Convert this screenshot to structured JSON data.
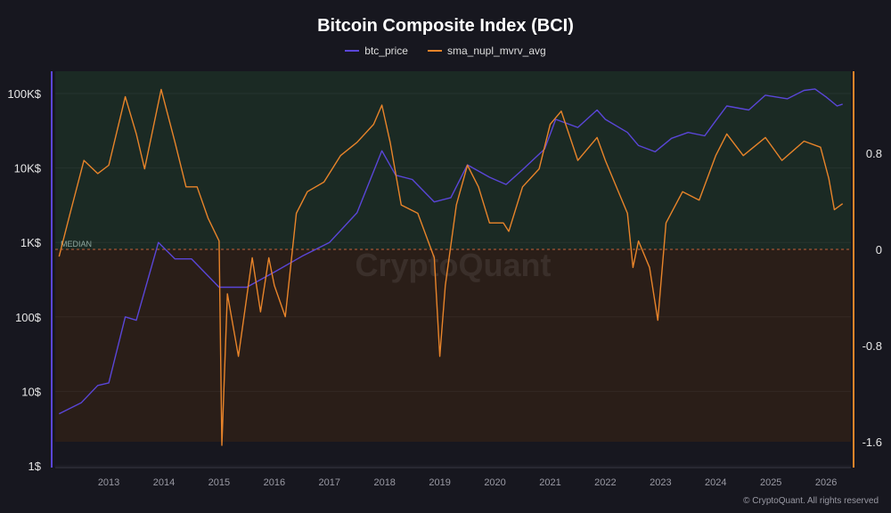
{
  "chart_data": {
    "type": "line",
    "title": "Bitcoin Composite Index (BCI)",
    "watermark": "CryptoQuant",
    "credit": "© CryptoQuant. All rights reserved",
    "median_label": "MEDIAN",
    "x_ticks": [
      2013,
      2014,
      2015,
      2016,
      2017,
      2018,
      2019,
      2020,
      2021,
      2022,
      2023,
      2024,
      2025,
      2026
    ],
    "xlim": [
      2012.03,
      2026.45
    ],
    "y_left": {
      "scale": "log",
      "lim": [
        1,
        150000
      ],
      "ticks": [
        1,
        10,
        100,
        1000,
        10000,
        100000
      ],
      "tick_labels": [
        "1$",
        "10$",
        "100$",
        "1K$",
        "10K$",
        "100K$"
      ]
    },
    "y_right": {
      "lim": [
        -1.6,
        1.5
      ],
      "ticks": [
        -1.6,
        -0.8,
        0,
        0.8
      ],
      "tick_labels": [
        "-1.6",
        "-0.8",
        "0",
        "0.8"
      ]
    },
    "legend_position": "top-center",
    "colors": {
      "btc": "#5a46d8",
      "sma": "#e8842a",
      "above": "#1b2a24",
      "below": "#2a1e18",
      "bg": "#17171f"
    },
    "series": [
      {
        "name": "btc_price",
        "axis": "left",
        "color": "#5a46d8",
        "x": [
          2012.1,
          2012.5,
          2012.8,
          2013.0,
          2013.3,
          2013.5,
          2013.9,
          2014.2,
          2014.5,
          2015.0,
          2015.5,
          2016.0,
          2016.5,
          2017.0,
          2017.5,
          2017.95,
          2018.2,
          2018.5,
          2018.9,
          2019.2,
          2019.5,
          2019.9,
          2020.2,
          2020.5,
          2020.9,
          2021.1,
          2021.5,
          2021.85,
          2022.0,
          2022.4,
          2022.6,
          2022.9,
          2023.2,
          2023.5,
          2023.8,
          2024.0,
          2024.2,
          2024.6,
          2024.9,
          2025.3,
          2025.6,
          2025.8,
          2026.0,
          2026.2,
          2026.3
        ],
        "y": [
          5,
          7,
          12,
          13,
          100,
          90,
          1000,
          600,
          600,
          250,
          250,
          400,
          650,
          1000,
          2500,
          17000,
          8000,
          7000,
          3500,
          4000,
          11000,
          7500,
          6000,
          9500,
          18000,
          45000,
          35000,
          60000,
          45000,
          30000,
          20000,
          16500,
          25000,
          30000,
          27000,
          43000,
          68000,
          60000,
          95000,
          85000,
          110000,
          115000,
          90000,
          68000,
          72000
        ]
      },
      {
        "name": "sma_nupl_mvrv_avg",
        "axis": "right",
        "color": "#e8842a",
        "x": [
          2012.1,
          2012.3,
          2012.55,
          2012.8,
          2013.0,
          2013.3,
          2013.5,
          2013.65,
          2013.95,
          2014.2,
          2014.4,
          2014.6,
          2014.8,
          2015.0,
          2015.05,
          2015.15,
          2015.35,
          2015.6,
          2015.75,
          2015.9,
          2016.0,
          2016.2,
          2016.4,
          2016.6,
          2016.9,
          2017.2,
          2017.5,
          2017.8,
          2017.95,
          2018.1,
          2018.3,
          2018.6,
          2018.9,
          2019.0,
          2019.1,
          2019.3,
          2019.5,
          2019.7,
          2019.9,
          2020.15,
          2020.25,
          2020.5,
          2020.8,
          2021.0,
          2021.2,
          2021.5,
          2021.85,
          2022.0,
          2022.4,
          2022.5,
          2022.6,
          2022.8,
          2022.95,
          2023.1,
          2023.4,
          2023.7,
          2024.0,
          2024.2,
          2024.5,
          2024.9,
          2025.2,
          2025.6,
          2025.9,
          2026.05,
          2026.15,
          2026.3
        ],
        "y": [
          -0.06,
          0.3,
          0.74,
          0.63,
          0.7,
          1.27,
          0.96,
          0.67,
          1.33,
          0.89,
          0.52,
          0.52,
          0.26,
          0.07,
          -1.63,
          -0.37,
          -0.89,
          -0.07,
          -0.52,
          -0.07,
          -0.3,
          -0.56,
          0.3,
          0.48,
          0.56,
          0.78,
          0.89,
          1.04,
          1.2,
          0.89,
          0.37,
          0.3,
          -0.07,
          -0.89,
          -0.3,
          0.37,
          0.7,
          0.52,
          0.22,
          0.22,
          0.15,
          0.52,
          0.67,
          1.04,
          1.15,
          0.74,
          0.93,
          0.74,
          0.3,
          -0.15,
          0.07,
          -0.15,
          -0.59,
          0.22,
          0.48,
          0.41,
          0.78,
          0.96,
          0.78,
          0.93,
          0.74,
          0.9,
          0.85,
          0.59,
          0.33,
          0.38
        ]
      }
    ]
  }
}
